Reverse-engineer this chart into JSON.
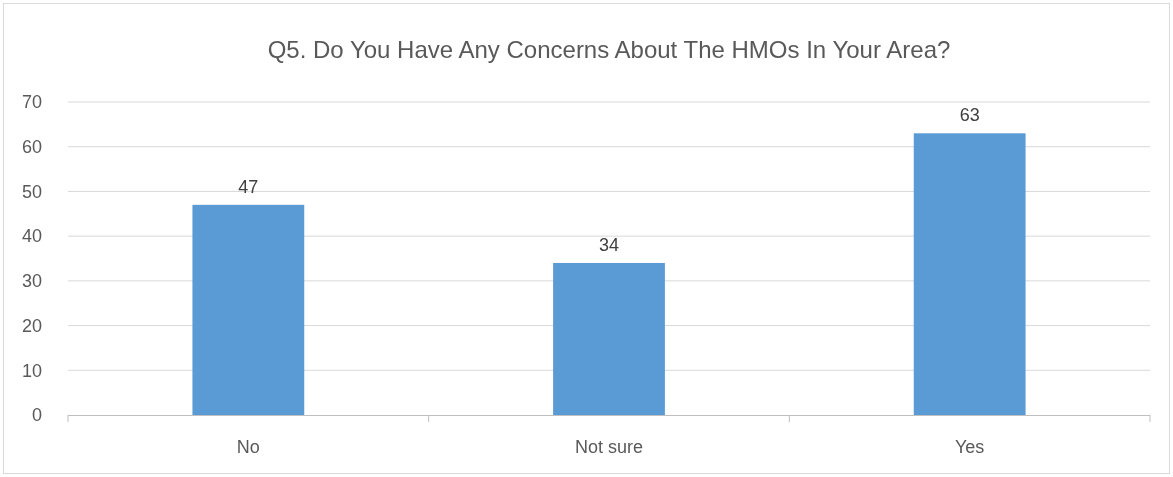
{
  "chart_data": {
    "type": "bar",
    "title": "Q5. Do You Have Any Concerns About The HMOs In Your Area?",
    "categories": [
      "No",
      "Not sure",
      "Yes"
    ],
    "values": [
      47,
      34,
      63
    ],
    "color": "#5b9bd5",
    "ylim": [
      0,
      70
    ],
    "yticks": [
      0,
      10,
      20,
      30,
      40,
      50,
      60,
      70
    ],
    "grid": "y",
    "data_labels": true
  }
}
